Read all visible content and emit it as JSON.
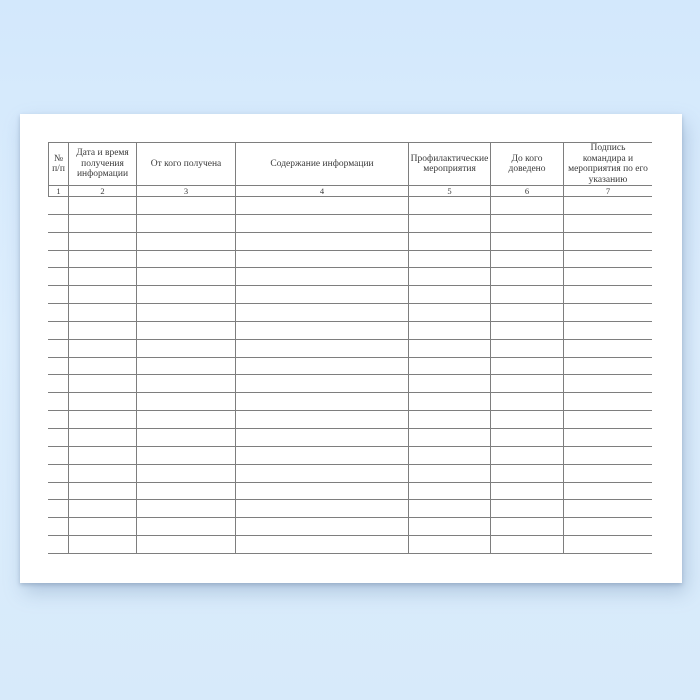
{
  "colors": {
    "background_top": "#d3e8fc",
    "background_bottom": "#d7eafa",
    "paper": "#ffffff",
    "table_line": "#7e7e7e",
    "header_text": "#3a3a3a"
  },
  "table": {
    "columns": [
      {
        "header_lines": [
          "№",
          "п/п"
        ],
        "number": "1"
      },
      {
        "header_lines": [
          "Дата и время",
          "получения",
          "информации"
        ],
        "number": "2"
      },
      {
        "header_lines": [
          "От кого получена"
        ],
        "number": "3"
      },
      {
        "header_lines": [
          "Содержание информации"
        ],
        "number": "4"
      },
      {
        "header_lines": [
          "Профилактические",
          "мероприятия"
        ],
        "number": "5"
      },
      {
        "header_lines": [
          "До кого",
          "доведено"
        ],
        "number": "6"
      },
      {
        "header_lines": [
          "Подпись",
          "командира и",
          "мероприятия по его",
          "указанию"
        ],
        "number": "7"
      }
    ],
    "empty_row_count": 20
  }
}
